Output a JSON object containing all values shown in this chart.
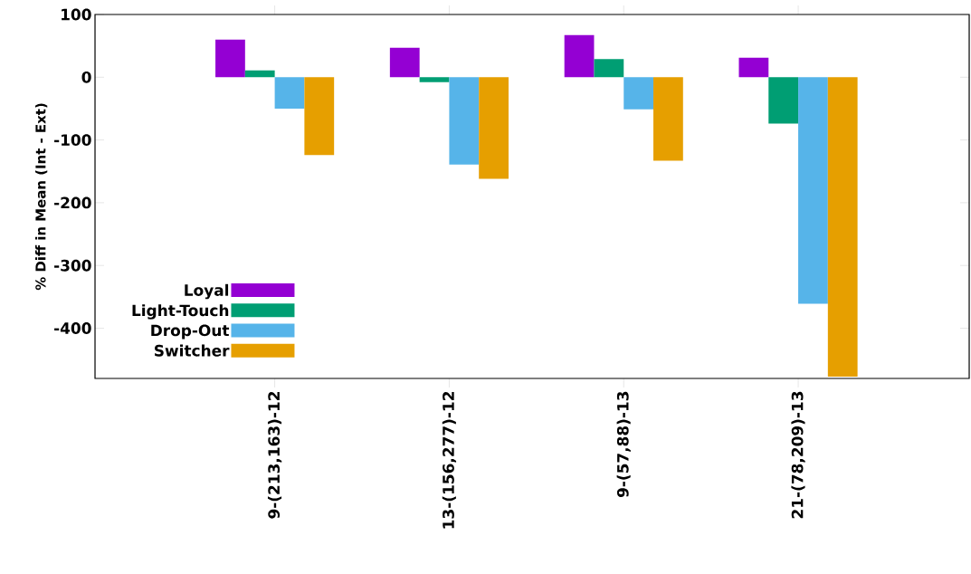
{
  "chart_data": {
    "type": "bar",
    "ylabel": "% Diff in Mean (Int - Ext)",
    "categories": [
      "9-(213,163)-12",
      "13-(156,277)-12",
      "9-(57,88)-13",
      "21-(78,209)-13"
    ],
    "series": [
      {
        "name": "Loyal",
        "color": "#9400d3",
        "values": [
          60,
          47,
          67,
          31
        ]
      },
      {
        "name": "Light-Touch",
        "color": "#009e73",
        "values": [
          11,
          -8,
          29,
          -74
        ]
      },
      {
        "name": "Drop-Out",
        "color": "#56b4e9",
        "values": [
          -50,
          -139,
          -51,
          -361
        ]
      },
      {
        "name": "Switcher",
        "color": "#e69f00",
        "values": [
          -124,
          -162,
          -133,
          -477
        ]
      }
    ],
    "ylim": [
      -480,
      100
    ],
    "yticks": [
      -400,
      -300,
      -200,
      -100,
      0,
      100
    ],
    "grid": false,
    "legend": "bottom left"
  }
}
